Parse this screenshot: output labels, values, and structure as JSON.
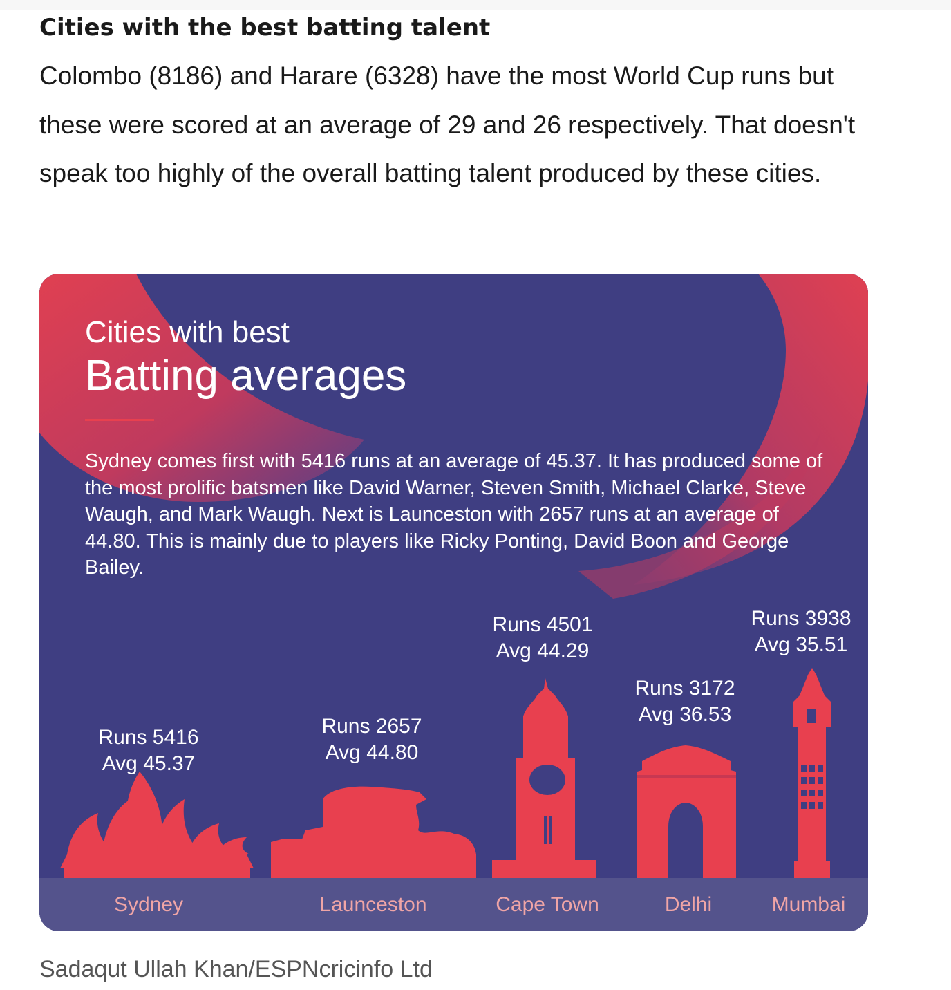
{
  "article": {
    "heading": "Cities with the best batting talent",
    "paragraph": "Colombo (8186) and Harare (6328) have the most World Cup runs but these were scored at an average of 29 and 26 respectively. That doesn't speak too highly of the overall batting talent produced by these cities.",
    "credit": "Sadaqut Ullah Khan/ESPNcricinfo Ltd"
  },
  "infographic": {
    "subtitle": "Cities with best",
    "title": "Batting averages",
    "description": "Sydney comes first with 5416 runs at an average of 45.37. It has produced some of the most prolific batsmen like David Warner, Steven Smith, Michael Clarke, Steve Waugh, and Mark Waugh. Next is Launceston with 2657 runs at an average of 44.80. This is mainly due to players like Ricky Ponting, David Boon and George Bailey.",
    "colors": {
      "background": "#3f3e82",
      "accent": "#e8404f",
      "city_band": "#54538c",
      "city_label": "#f0a5a6"
    },
    "cities": [
      {
        "name": "Sydney",
        "runs_label": "Runs 5416",
        "avg_label": "Avg 45.37",
        "icon": "sydney-opera-house-icon"
      },
      {
        "name": "Launceston",
        "runs_label": "Runs 2657",
        "avg_label": "Avg 44.80",
        "icon": "launceston-gorge-icon"
      },
      {
        "name": "Cape Town",
        "runs_label": "Runs 4501",
        "avg_label": "Avg 44.29",
        "icon": "cape-town-clock-tower-icon"
      },
      {
        "name": "Delhi",
        "runs_label": "Runs 3172",
        "avg_label": "Avg 36.53",
        "icon": "india-gate-icon"
      },
      {
        "name": "Mumbai",
        "runs_label": "Runs 3938",
        "avg_label": "Avg 35.51",
        "icon": "rajabai-clock-tower-icon"
      }
    ]
  }
}
